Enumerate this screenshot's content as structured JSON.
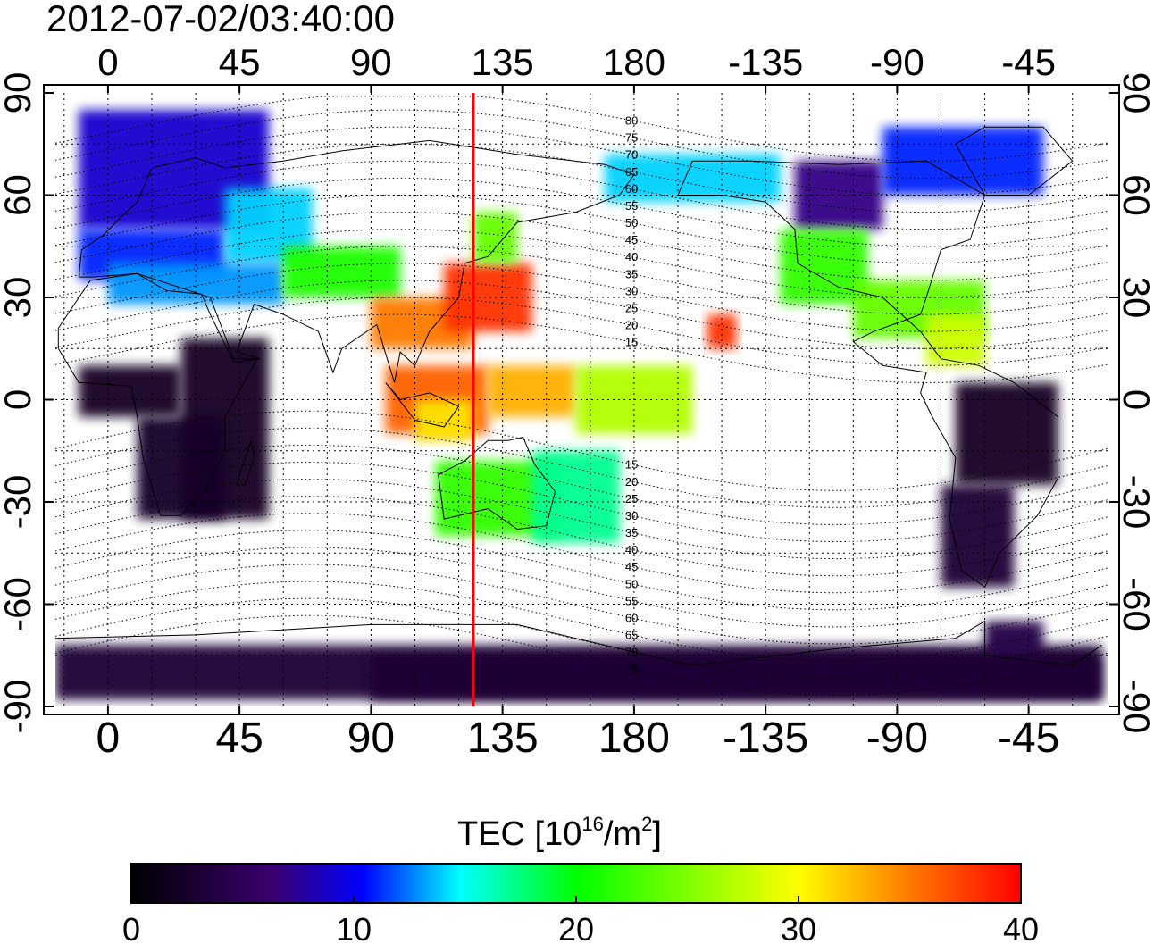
{
  "title": "2012-07-02/03:40:00",
  "map": {
    "lon_ticks_top": [
      "0",
      "45",
      "90",
      "135",
      "180",
      "-135",
      "-90",
      "-45"
    ],
    "lon_ticks_bottom": [
      "0",
      "45",
      "90",
      "135",
      "180",
      "-135",
      "-90",
      "-45"
    ],
    "lat_ticks_left": [
      "90",
      "60",
      "30",
      "0",
      "-30",
      "-60",
      "-90"
    ],
    "lat_ticks_right": [
      "90",
      "60",
      "30",
      "0",
      "-30",
      "-60",
      "-90"
    ],
    "lon_tick_values": [
      0,
      45,
      90,
      135,
      180,
      225,
      270,
      315
    ],
    "lat_tick_values": [
      90,
      60,
      30,
      0,
      -30,
      -60,
      -90
    ],
    "lon_range": [
      -18,
      342
    ],
    "lat_range": [
      -90,
      90
    ],
    "grid": true,
    "grid_spacing_deg": 15,
    "meridian_marker_lon": 125,
    "meridian_marker_color": "#ff0000",
    "magnetic_lat_labels": [
      "80",
      "75",
      "70",
      "65",
      "60",
      "55",
      "50",
      "45",
      "40",
      "35",
      "30",
      "25",
      "20",
      "15",
      "15",
      "20",
      "25",
      "30",
      "35",
      "40",
      "45",
      "50",
      "55",
      "60",
      "65",
      "70",
      "75"
    ],
    "magnetic_lat_values": [
      80,
      75,
      70,
      65,
      60,
      55,
      50,
      45,
      40,
      35,
      30,
      25,
      20,
      15,
      -15,
      -20,
      -25,
      -30,
      -35,
      -40,
      -45,
      -50,
      -55,
      -60,
      -65,
      -70,
      -75
    ]
  },
  "colorbar": {
    "title_main": "TEC  [10",
    "title_sup1": "16",
    "title_mid": "/m",
    "title_sup2": "2",
    "title_end": "]",
    "tick_labels": [
      "0",
      "10",
      "20",
      "30",
      "40"
    ],
    "tick_values": [
      0,
      10,
      20,
      30,
      40
    ],
    "range": [
      0,
      40
    ],
    "colors": [
      "#000000",
      "#4b0082",
      "#0000ff",
      "#00ffff",
      "#00ff00",
      "#ffff00",
      "#ff0000"
    ]
  }
}
